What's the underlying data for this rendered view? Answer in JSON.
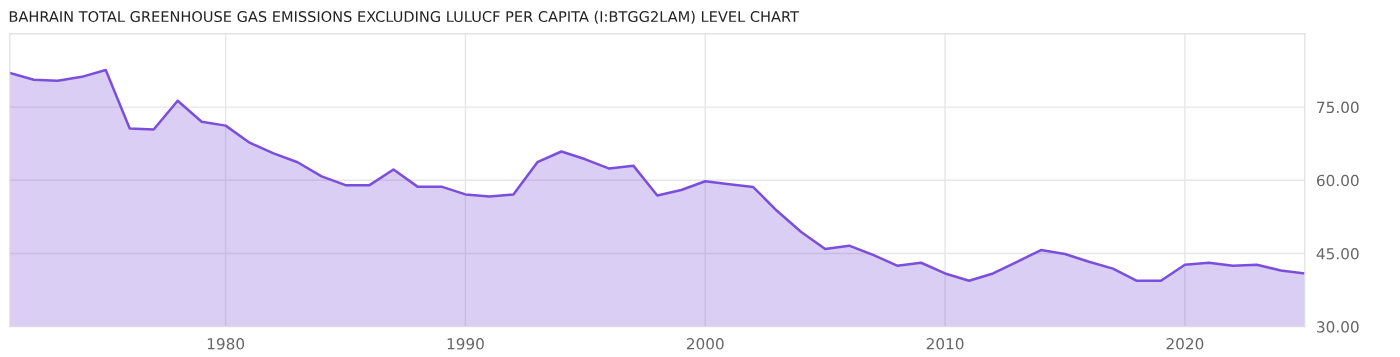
{
  "chart_data": {
    "type": "area",
    "title": "BAHRAIN TOTAL GREENHOUSE GAS EMISSIONS EXCLUDING LULUCF PER CAPITA (I:BTGG2LAM) LEVEL CHART",
    "x": [
      1971,
      1972,
      1973,
      1974,
      1975,
      1976,
      1977,
      1978,
      1979,
      1980,
      1981,
      1982,
      1983,
      1984,
      1985,
      1986,
      1987,
      1988,
      1989,
      1990,
      1991,
      1992,
      1993,
      1994,
      1995,
      1996,
      1997,
      1998,
      1999,
      2000,
      2001,
      2002,
      2003,
      2004,
      2005,
      2006,
      2007,
      2008,
      2009,
      2010,
      2011,
      2012,
      2013,
      2014,
      2015,
      2016,
      2017,
      2018,
      2019,
      2020,
      2021,
      2022,
      2023,
      2024,
      2025
    ],
    "series": [
      {
        "color": "#7b4fdc",
        "values": [
          82.0,
          80.6,
          80.4,
          81.2,
          82.6,
          70.6,
          70.4,
          76.3,
          72.0,
          71.2,
          67.7,
          65.5,
          63.7,
          60.8,
          59.0,
          59.0,
          62.2,
          58.7,
          58.7,
          57.1,
          56.7,
          57.1,
          63.7,
          65.9,
          64.3,
          62.4,
          63.0,
          56.9,
          58.0,
          59.8,
          59.2,
          58.6,
          53.7,
          49.4,
          45.9,
          46.6,
          44.7,
          42.5,
          43.1,
          40.9,
          39.4,
          40.9,
          43.3,
          45.7,
          44.9,
          43.3,
          41.9,
          39.4,
          39.4,
          42.7,
          43.1,
          42.5,
          42.7,
          41.5,
          40.9
        ]
      }
    ],
    "xlim": [
      1971,
      2025
    ],
    "xticks": [
      1980,
      1990,
      2000,
      2010,
      2020
    ],
    "ylim": [
      30,
      90
    ],
    "yticks": [
      {
        "value": 30,
        "label": "30.00"
      },
      {
        "value": 45,
        "label": "45.00"
      },
      {
        "value": 60,
        "label": "60.00"
      },
      {
        "value": 75,
        "label": "75.00"
      }
    ],
    "grid": true,
    "legend": false
  }
}
